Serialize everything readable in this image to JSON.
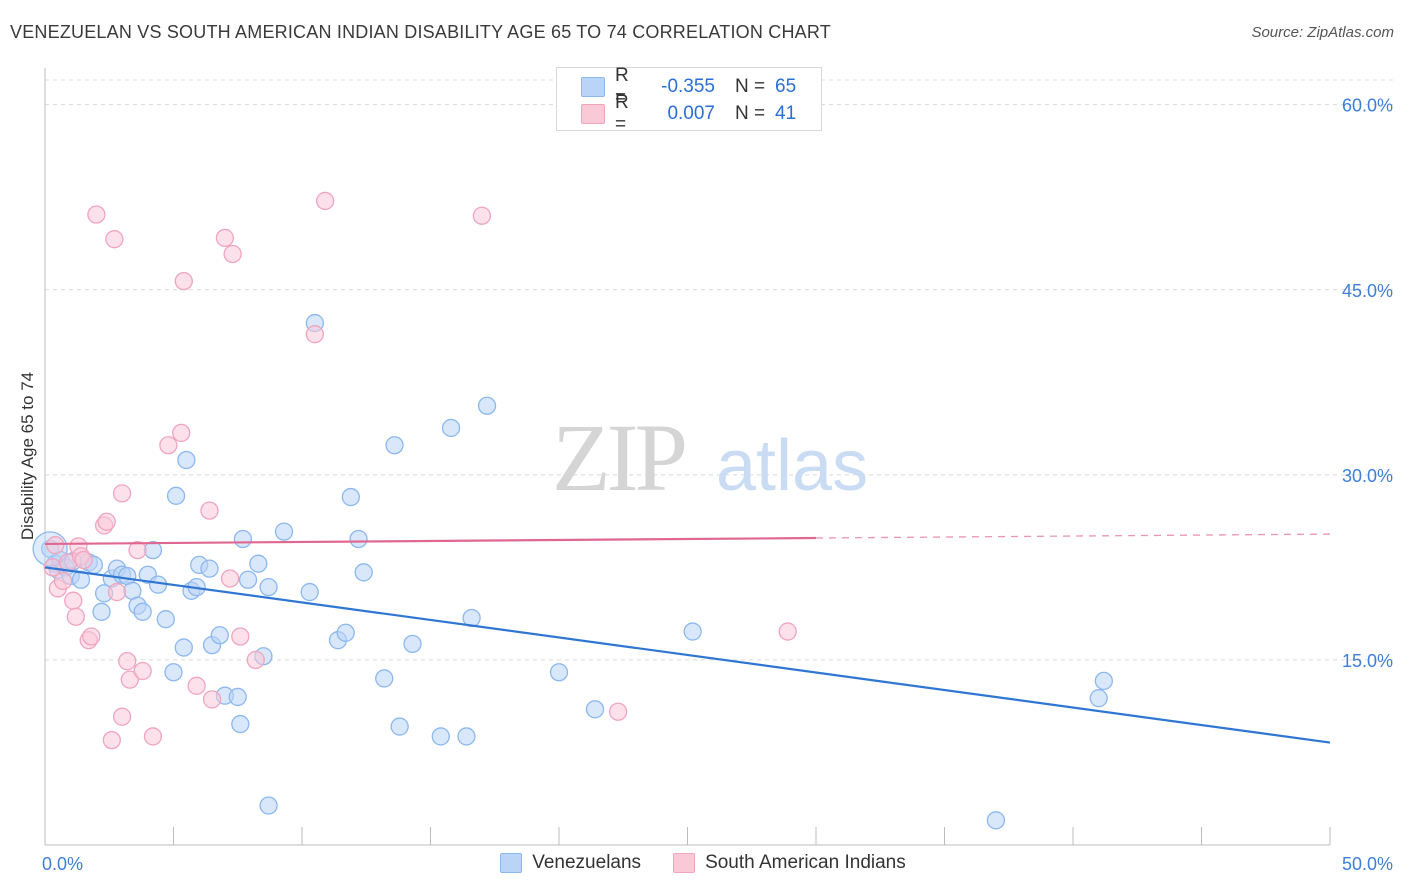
{
  "title": "VENEZUELAN VS SOUTH AMERICAN INDIAN DISABILITY AGE 65 TO 74 CORRELATION CHART",
  "source": "Source: ZipAtlas.com",
  "watermark": {
    "zip": "ZIP",
    "atlas": "atlas"
  },
  "legend": {
    "rows": [
      {
        "r_label": "R =",
        "r_value": "-0.355",
        "n_label": "N =",
        "n_value": "65",
        "color": "#8cb8ef",
        "fill": "#b9d4f7"
      },
      {
        "r_label": "R =",
        "r_value": "0.007",
        "n_label": "N =",
        "n_value": "41",
        "color": "#f0a5bd",
        "fill": "#f9c9d8"
      }
    ]
  },
  "bottom_legend": [
    "Venezuelans",
    "South American Indians"
  ],
  "chart_data": {
    "type": "scatter",
    "xlabel": "",
    "ylabel": "Disability Age 65 to 74",
    "xlim": [
      0,
      50
    ],
    "ylim": [
      0,
      62
    ],
    "x_tick_labels": [
      "0.0%",
      "50.0%"
    ],
    "y_ticks": [
      15,
      30,
      45,
      60
    ],
    "y_tick_labels": [
      "15.0%",
      "30.0%",
      "45.0%",
      "60.0%"
    ],
    "grid": true,
    "series": [
      {
        "name": "Venezuelans",
        "color": "#2f76d2",
        "fill": "#b9d4f7",
        "stroke": "#8cb8ef",
        "trend": {
          "x": [
            0,
            50
          ],
          "y": [
            22.5,
            8.3
          ],
          "dashed_from": null
        },
        "points": [
          [
            0.2,
            24.0
          ],
          [
            0.4,
            22.8
          ],
          [
            0.5,
            22.3
          ],
          [
            0.6,
            23.1
          ],
          [
            0.8,
            22.5
          ],
          [
            1.0,
            21.8
          ],
          [
            1.1,
            23.0
          ],
          [
            1.4,
            21.5
          ],
          [
            1.7,
            22.9
          ],
          [
            1.9,
            22.7
          ],
          [
            2.2,
            18.9
          ],
          [
            2.3,
            20.4
          ],
          [
            2.6,
            21.6
          ],
          [
            2.8,
            22.4
          ],
          [
            3.0,
            21.9
          ],
          [
            3.2,
            21.8
          ],
          [
            3.4,
            20.6
          ],
          [
            3.6,
            19.4
          ],
          [
            3.8,
            18.9
          ],
          [
            4.0,
            21.9
          ],
          [
            4.2,
            23.9
          ],
          [
            4.4,
            21.1
          ],
          [
            4.7,
            18.3
          ],
          [
            5.0,
            14.0
          ],
          [
            5.1,
            28.3
          ],
          [
            5.4,
            16.0
          ],
          [
            5.5,
            31.2
          ],
          [
            5.7,
            20.6
          ],
          [
            5.9,
            20.9
          ],
          [
            6.0,
            22.7
          ],
          [
            6.4,
            22.4
          ],
          [
            6.5,
            16.2
          ],
          [
            6.8,
            17.0
          ],
          [
            7.0,
            12.1
          ],
          [
            7.5,
            12.0
          ],
          [
            7.6,
            9.8
          ],
          [
            7.7,
            24.8
          ],
          [
            7.9,
            21.5
          ],
          [
            8.3,
            22.8
          ],
          [
            8.5,
            15.3
          ],
          [
            8.7,
            20.9
          ],
          [
            8.7,
            3.2
          ],
          [
            9.3,
            25.4
          ],
          [
            10.3,
            20.5
          ],
          [
            10.5,
            42.3
          ],
          [
            11.4,
            16.6
          ],
          [
            11.7,
            17.2
          ],
          [
            11.9,
            28.2
          ],
          [
            12.2,
            24.8
          ],
          [
            12.4,
            22.1
          ],
          [
            13.2,
            13.5
          ],
          [
            13.6,
            32.4
          ],
          [
            13.8,
            9.6
          ],
          [
            14.3,
            16.3
          ],
          [
            15.4,
            8.8
          ],
          [
            15.8,
            33.8
          ],
          [
            16.4,
            8.8
          ],
          [
            16.6,
            18.4
          ],
          [
            17.2,
            35.6
          ],
          [
            20.0,
            14.0
          ],
          [
            21.4,
            11.0
          ],
          [
            25.2,
            17.3
          ],
          [
            37.0,
            2.0
          ],
          [
            41.0,
            11.9
          ],
          [
            41.2,
            13.3
          ]
        ]
      },
      {
        "name": "South American Indians",
        "color": "#e0678f",
        "fill": "#f9c9d8",
        "stroke": "#f0a5bd",
        "trend": {
          "x": [
            0,
            50
          ],
          "y": [
            24.4,
            25.2
          ],
          "dashed_from": 30
        },
        "points": [
          [
            0.3,
            22.5
          ],
          [
            0.4,
            24.3
          ],
          [
            0.5,
            20.8
          ],
          [
            0.7,
            21.4
          ],
          [
            0.9,
            22.9
          ],
          [
            1.1,
            19.8
          ],
          [
            1.2,
            18.5
          ],
          [
            1.3,
            24.2
          ],
          [
            1.4,
            23.4
          ],
          [
            1.5,
            23.1
          ],
          [
            1.7,
            16.6
          ],
          [
            1.8,
            16.9
          ],
          [
            2.0,
            51.1
          ],
          [
            2.3,
            25.9
          ],
          [
            2.4,
            26.2
          ],
          [
            2.6,
            8.5
          ],
          [
            2.7,
            49.1
          ],
          [
            2.8,
            20.5
          ],
          [
            3.0,
            28.5
          ],
          [
            3.0,
            10.4
          ],
          [
            3.2,
            14.9
          ],
          [
            3.3,
            13.4
          ],
          [
            3.8,
            14.1
          ],
          [
            4.2,
            8.8
          ],
          [
            4.8,
            32.4
          ],
          [
            5.3,
            33.4
          ],
          [
            5.4,
            45.7
          ],
          [
            5.9,
            12.9
          ],
          [
            6.4,
            27.1
          ],
          [
            6.5,
            11.8
          ],
          [
            7.0,
            49.2
          ],
          [
            7.2,
            21.6
          ],
          [
            7.3,
            47.9
          ],
          [
            7.6,
            16.9
          ],
          [
            8.2,
            15.0
          ],
          [
            10.5,
            41.4
          ],
          [
            10.9,
            52.2
          ],
          [
            17.0,
            51.0
          ],
          [
            22.3,
            10.8
          ],
          [
            28.9,
            17.3
          ],
          [
            3.6,
            23.9
          ]
        ]
      }
    ]
  }
}
